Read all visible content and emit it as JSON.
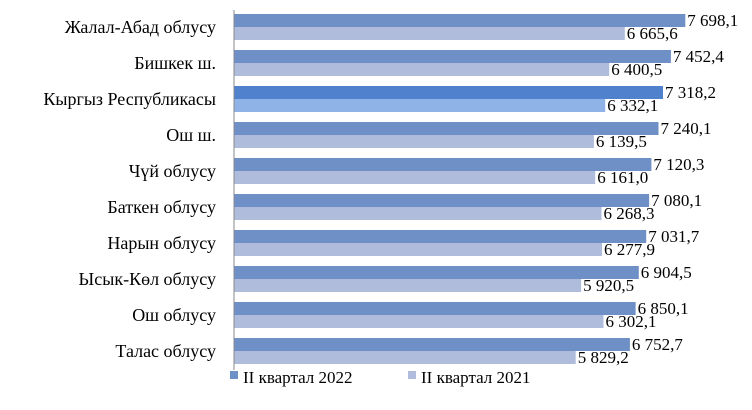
{
  "chart_data": {
    "type": "bar",
    "orientation": "horizontal",
    "categories": [
      "Жалал-Абад облусу",
      "Бишкек ш.",
      "Кыргыз Республикасы",
      "Ош ш.",
      "Чүй облусу",
      "Баткен облусу",
      "Нарын облусу",
      "Ысык-Көл облусу",
      "Ош облусу",
      "Талас облусу"
    ],
    "series": [
      {
        "name": "II квартал 2022",
        "color": "#6f8fc7",
        "highlight_color": "#4f81cd",
        "values": [
          7698.1,
          7452.4,
          7318.2,
          7240.1,
          7120.3,
          7080.1,
          7031.7,
          6904.5,
          6850.1,
          6752.7
        ],
        "labels": [
          "7 698,1",
          "7 452,4",
          "7 318,2",
          "7 240,1",
          "7 120,3",
          "7 080,1",
          "7 031,7",
          "6 904,5",
          "6 850,1",
          "6 752,7"
        ]
      },
      {
        "name": "II квартал 2021",
        "color": "#afbcdc",
        "highlight_color": "#8fb3e6",
        "values": [
          6665.6,
          6400.5,
          6332.1,
          6139.5,
          6161.0,
          6268.3,
          6277.9,
          5920.5,
          6302.1,
          5829.2
        ],
        "labels": [
          "6 665,6",
          "6 400,5",
          "6 332,1",
          "6 139,5",
          "6 161,0",
          "6 268,3",
          "6 277,9",
          "5 920,5",
          "6 302,1",
          "5 829,2"
        ]
      }
    ],
    "highlight_category": "Кыргыз Республикасы",
    "xlim": [
      0,
      8000
    ],
    "grid": false,
    "legend_position": "bottom"
  }
}
